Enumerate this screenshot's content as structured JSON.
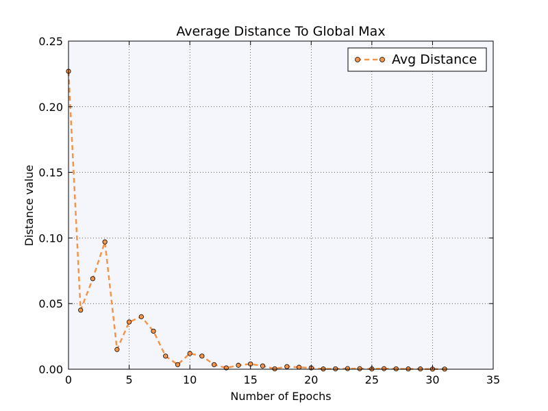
{
  "chart_data": {
    "type": "line",
    "title": "Average Distance To Global Max",
    "xlabel": "Number of Epochs",
    "ylabel": "Distance value",
    "xlim": [
      0,
      35
    ],
    "ylim": [
      0,
      0.25
    ],
    "xticks": [
      "0",
      "5",
      "10",
      "15",
      "20",
      "25",
      "30",
      "35"
    ],
    "yticks": [
      "0.00",
      "0.05",
      "0.10",
      "0.15",
      "0.20",
      "0.25"
    ],
    "grid": true,
    "legend_position": "top-right",
    "plot_background": "#f5f6fb",
    "series": [
      {
        "name": "Avg Distance",
        "color": "#f39448",
        "marker_color": "#f39448",
        "line_style": "dashed",
        "marker": "circle",
        "x": [
          0,
          1,
          2,
          3,
          4,
          5,
          6,
          7,
          8,
          9,
          10,
          11,
          12,
          13,
          14,
          15,
          16,
          17,
          18,
          19,
          20,
          21,
          22,
          23,
          24,
          25,
          26,
          27,
          28,
          29,
          30,
          31
        ],
        "y": [
          0.227,
          0.045,
          0.069,
          0.097,
          0.015,
          0.036,
          0.04,
          0.029,
          0.01,
          0.0035,
          0.012,
          0.01,
          0.0035,
          0.001,
          0.003,
          0.004,
          0.0025,
          0.0003,
          0.002,
          0.0015,
          0.001,
          0.0002,
          0.0003,
          0.0005,
          0.0004,
          0.0002,
          0.0004,
          0.0003,
          0.0002,
          0.0002,
          0.0001,
          0.0001
        ]
      }
    ]
  }
}
